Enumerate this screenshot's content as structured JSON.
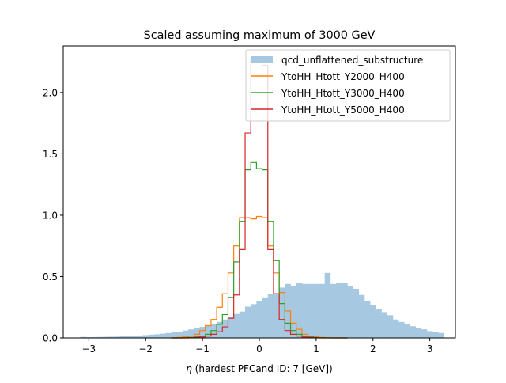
{
  "chart_data": {
    "type": "histogram",
    "title": "Scaled assuming maximum of 3000 GeV",
    "xlabel_symbol": "η",
    "xlabel_rest": " (hardest PFCand ID: 7 [GeV])",
    "xlim": [
      -3.45,
      3.45
    ],
    "ylim": [
      0,
      2.38
    ],
    "xticks": [
      -3,
      -2,
      -1,
      0,
      1,
      2,
      3
    ],
    "xtick_labels": [
      "−3",
      "−2",
      "−1",
      "0",
      "1",
      "2",
      "3"
    ],
    "yticks": [
      0,
      0.5,
      1.0,
      1.5,
      2.0
    ],
    "ytick_labels": [
      "0.0",
      "0.5",
      "1.0",
      "1.5",
      "2.0"
    ],
    "legend_position": "top-right",
    "series": [
      {
        "name": "qcd_unflattened_substructure",
        "style": "filled",
        "color": "#a6c8e0",
        "bin_start": -3.15,
        "bin_width": 0.1,
        "values": [
          0.008,
          0.006,
          0.007,
          0.008,
          0.009,
          0.01,
          0.011,
          0.013,
          0.015,
          0.017,
          0.02,
          0.023,
          0.027,
          0.03,
          0.035,
          0.04,
          0.045,
          0.052,
          0.06,
          0.07,
          0.08,
          0.09,
          0.1,
          0.115,
          0.13,
          0.15,
          0.175,
          0.195,
          0.215,
          0.255,
          0.275,
          0.3,
          0.33,
          0.355,
          0.36,
          0.41,
          0.44,
          0.42,
          0.45,
          0.44,
          0.44,
          0.44,
          0.44,
          0.53,
          0.44,
          0.445,
          0.45,
          0.42,
          0.4,
          0.35,
          0.3,
          0.27,
          0.235,
          0.21,
          0.185,
          0.15,
          0.13,
          0.11,
          0.095,
          0.08,
          0.07,
          0.055,
          0.05,
          0.04
        ]
      },
      {
        "name": "YtoHH_Htott_Y2000_H400",
        "style": "step",
        "color": "#ff7f0e",
        "bin_start": -1.55,
        "bin_width": 0.1,
        "values": [
          0.002,
          0.004,
          0.008,
          0.015,
          0.03,
          0.06,
          0.1,
          0.15,
          0.25,
          0.36,
          0.53,
          0.75,
          0.98,
          0.98,
          0.97,
          0.99,
          0.98,
          0.75,
          0.53,
          0.37,
          0.22,
          0.12,
          0.07,
          0.03,
          0.015,
          0.008,
          0.004,
          0.002,
          0.001,
          0.001,
          0.0
        ]
      },
      {
        "name": "YtoHH_Htott_Y3000_H400",
        "style": "step",
        "color": "#2ca02c",
        "bin_start": -1.55,
        "bin_width": 0.1,
        "values": [
          0.0,
          0.0,
          0.002,
          0.004,
          0.008,
          0.015,
          0.03,
          0.06,
          0.11,
          0.19,
          0.33,
          0.62,
          0.95,
          1.37,
          1.43,
          1.38,
          1.37,
          0.95,
          0.63,
          0.28,
          0.12,
          0.06,
          0.03,
          0.015,
          0.008,
          0.004,
          0.002,
          0.001,
          0.0,
          0.0,
          0.0
        ]
      },
      {
        "name": "YtoHH_Htott_Y5000_H400",
        "style": "step",
        "color": "#d62728",
        "bin_start": -1.55,
        "bin_width": 0.1,
        "values": [
          0.0,
          0.0,
          0.0,
          0.002,
          0.004,
          0.008,
          0.015,
          0.03,
          0.05,
          0.09,
          0.16,
          0.35,
          0.72,
          1.67,
          2.27,
          2.25,
          2.22,
          0.72,
          0.36,
          0.15,
          0.06,
          0.03,
          0.015,
          0.008,
          0.004,
          0.002,
          0.0,
          0.0,
          0.0,
          0.0,
          0.0
        ]
      }
    ]
  }
}
